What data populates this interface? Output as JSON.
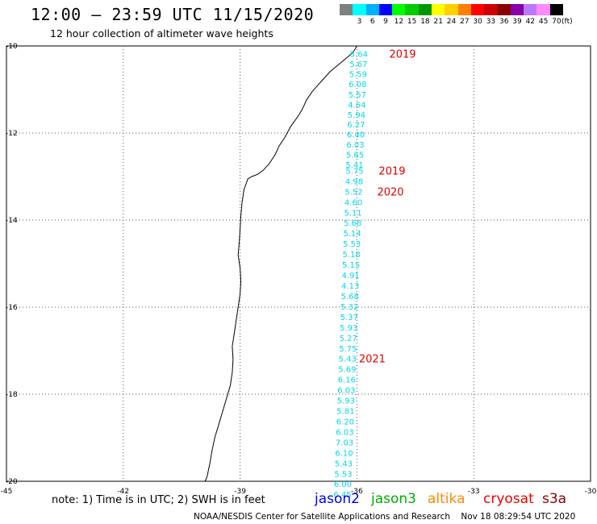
{
  "header": {
    "title": "12:00 – 23:59 UTC 11/15/2020",
    "subtitle": "12 hour collection of altimeter wave heights"
  },
  "legend": {
    "unit": "(ft)",
    "bins": [
      {
        "label": "",
        "color": "#808080"
      },
      {
        "label": "3",
        "color": "#00ffff"
      },
      {
        "label": "6",
        "color": "#00b0ff"
      },
      {
        "label": "9",
        "color": "#0000ff"
      },
      {
        "label": "12",
        "color": "#00ff00"
      },
      {
        "label": "15",
        "color": "#00cc00"
      },
      {
        "label": "18",
        "color": "#009900"
      },
      {
        "label": "21",
        "color": "#ffff00"
      },
      {
        "label": "24",
        "color": "#ffd000"
      },
      {
        "label": "27",
        "color": "#ff8000"
      },
      {
        "label": "30",
        "color": "#ff0000"
      },
      {
        "label": "33",
        "color": "#cc0000"
      },
      {
        "label": "36",
        "color": "#880000"
      },
      {
        "label": "39",
        "color": "#8800aa"
      },
      {
        "label": "42",
        "color": "#bb77ff"
      },
      {
        "label": "45",
        "color": "#ff88ff"
      },
      {
        "label": "70",
        "color": "#000000"
      }
    ]
  },
  "map": {
    "lon_range": [
      -45,
      -30
    ],
    "lat_range": [
      -20,
      -10
    ],
    "x_ticks": [
      "-45",
      "-42",
      "-39",
      "-36",
      "-33",
      "-30"
    ],
    "y_ticks": [
      "-10",
      "-12",
      "-14",
      "-16",
      "-18",
      "-20"
    ],
    "track_color": "#00d8e8",
    "track": [
      {
        "lon": -35.95,
        "lat": -10.18,
        "swh": "5.64"
      },
      {
        "lon": -35.96,
        "lat": -10.41,
        "swh": "5.67"
      },
      {
        "lon": -35.97,
        "lat": -10.64,
        "swh": "5.59"
      },
      {
        "lon": -35.98,
        "lat": -10.87,
        "swh": "6.08"
      },
      {
        "lon": -35.99,
        "lat": -11.11,
        "swh": "5.57"
      },
      {
        "lon": -36.0,
        "lat": -11.34,
        "swh": "4.64"
      },
      {
        "lon": -36.01,
        "lat": -11.57,
        "swh": "5.94"
      },
      {
        "lon": -36.02,
        "lat": -11.8,
        "swh": "6.27"
      },
      {
        "lon": -36.03,
        "lat": -12.03,
        "swh": "6.40"
      },
      {
        "lon": -36.04,
        "lat": -12.26,
        "swh": "6.03"
      },
      {
        "lon": -36.05,
        "lat": -12.49,
        "swh": "5.65"
      },
      {
        "lon": -36.06,
        "lat": -12.72,
        "swh": "5.41"
      },
      {
        "lon": -36.06,
        "lat": -12.86,
        "swh": "5.75"
      },
      {
        "lon": -36.07,
        "lat": -13.1,
        "swh": "4.98"
      },
      {
        "lon": -36.08,
        "lat": -13.34,
        "swh": "5.52"
      },
      {
        "lon": -36.09,
        "lat": -13.58,
        "swh": "4.60"
      },
      {
        "lon": -36.1,
        "lat": -13.82,
        "swh": "5.11"
      },
      {
        "lon": -36.11,
        "lat": -14.06,
        "swh": "5.68"
      },
      {
        "lon": -36.12,
        "lat": -14.3,
        "swh": "5.14"
      },
      {
        "lon": -36.13,
        "lat": -14.54,
        "swh": "5.53"
      },
      {
        "lon": -36.14,
        "lat": -14.78,
        "swh": "5.18"
      },
      {
        "lon": -36.15,
        "lat": -15.02,
        "swh": "5.15"
      },
      {
        "lon": -36.16,
        "lat": -15.26,
        "swh": "4.91"
      },
      {
        "lon": -36.17,
        "lat": -15.5,
        "swh": "4.13"
      },
      {
        "lon": -36.18,
        "lat": -15.74,
        "swh": "5.68"
      },
      {
        "lon": -36.19,
        "lat": -15.98,
        "swh": "5.32"
      },
      {
        "lon": -36.2,
        "lat": -16.22,
        "swh": "5.37"
      },
      {
        "lon": -36.21,
        "lat": -16.46,
        "swh": "5.93"
      },
      {
        "lon": -36.22,
        "lat": -16.7,
        "swh": "5.27"
      },
      {
        "lon": -36.23,
        "lat": -16.94,
        "swh": "5.75"
      },
      {
        "lon": -36.24,
        "lat": -17.18,
        "swh": "5.43"
      },
      {
        "lon": -36.25,
        "lat": -17.42,
        "swh": "5.69"
      },
      {
        "lon": -36.26,
        "lat": -17.66,
        "swh": "6.16"
      },
      {
        "lon": -36.27,
        "lat": -17.9,
        "swh": "6.03"
      },
      {
        "lon": -36.28,
        "lat": -18.14,
        "swh": "5.93"
      },
      {
        "lon": -36.29,
        "lat": -18.38,
        "swh": "5.81"
      },
      {
        "lon": -36.3,
        "lat": -18.62,
        "swh": "6.20"
      },
      {
        "lon": -36.31,
        "lat": -18.86,
        "swh": "6.03"
      },
      {
        "lon": -36.32,
        "lat": -19.1,
        "swh": "7.03"
      },
      {
        "lon": -36.33,
        "lat": -19.34,
        "swh": "6.10"
      },
      {
        "lon": -36.34,
        "lat": -19.58,
        "swh": "5.43"
      },
      {
        "lon": -36.35,
        "lat": -19.82,
        "swh": "5.53"
      },
      {
        "lon": -36.36,
        "lat": -20.06,
        "swh": "6.00"
      },
      {
        "lon": -36.37,
        "lat": -20.3,
        "swh": "6.45"
      }
    ],
    "pass_labels": [
      {
        "text": "2019",
        "lon": -35.17,
        "lat": -10.18
      },
      {
        "text": "2019",
        "lon": -35.44,
        "lat": -12.86
      },
      {
        "text": "2020",
        "lon": -35.48,
        "lat": -13.34
      },
      {
        "text": "2021",
        "lon": -35.95,
        "lat": -17.18
      }
    ],
    "coastline": [
      [
        -36.0,
        -10.0
      ],
      [
        -36.1,
        -10.15
      ],
      [
        -36.3,
        -10.3
      ],
      [
        -36.5,
        -10.45
      ],
      [
        -36.7,
        -10.6
      ],
      [
        -36.85,
        -10.75
      ],
      [
        -37.0,
        -10.9
      ],
      [
        -37.15,
        -11.05
      ],
      [
        -37.3,
        -11.25
      ],
      [
        -37.4,
        -11.45
      ],
      [
        -37.5,
        -11.6
      ],
      [
        -37.7,
        -11.85
      ],
      [
        -37.85,
        -12.1
      ],
      [
        -38.0,
        -12.3
      ],
      [
        -38.1,
        -12.5
      ],
      [
        -38.25,
        -12.7
      ],
      [
        -38.4,
        -12.85
      ],
      [
        -38.55,
        -12.95
      ],
      [
        -38.7,
        -13.0
      ],
      [
        -38.8,
        -13.05
      ],
      [
        -38.9,
        -13.3
      ],
      [
        -38.95,
        -13.6
      ],
      [
        -38.98,
        -13.9
      ],
      [
        -39.0,
        -14.2
      ],
      [
        -39.02,
        -14.5
      ],
      [
        -39.05,
        -14.8
      ],
      [
        -39.0,
        -15.1
      ],
      [
        -38.98,
        -15.4
      ],
      [
        -39.0,
        -15.7
      ],
      [
        -39.05,
        -16.0
      ],
      [
        -39.1,
        -16.3
      ],
      [
        -39.15,
        -16.6
      ],
      [
        -39.2,
        -16.9
      ],
      [
        -39.18,
        -17.2
      ],
      [
        -39.2,
        -17.5
      ],
      [
        -39.25,
        -17.8
      ],
      [
        -39.35,
        -18.1
      ],
      [
        -39.45,
        -18.4
      ],
      [
        -39.55,
        -18.7
      ],
      [
        -39.65,
        -19.0
      ],
      [
        -39.72,
        -19.3
      ],
      [
        -39.78,
        -19.6
      ],
      [
        -39.85,
        -19.9
      ],
      [
        -39.9,
        -20.0
      ]
    ]
  },
  "footer": {
    "note": "note:  1) Time is in UTC;  2) SWH is in feet",
    "satellites": [
      {
        "name": "jason2",
        "color": "#0000ee"
      },
      {
        "name": "jason3",
        "color": "#00aa00"
      },
      {
        "name": "altika",
        "color": "#ff8800"
      },
      {
        "name": "cryosat",
        "color": "#ee0000"
      },
      {
        "name": "s3a",
        "color": "#880000"
      }
    ],
    "credit": "NOAA/NESDIS Center for Satellite Applications and Research    Nov 18 08:29:54 UTC 2020"
  }
}
